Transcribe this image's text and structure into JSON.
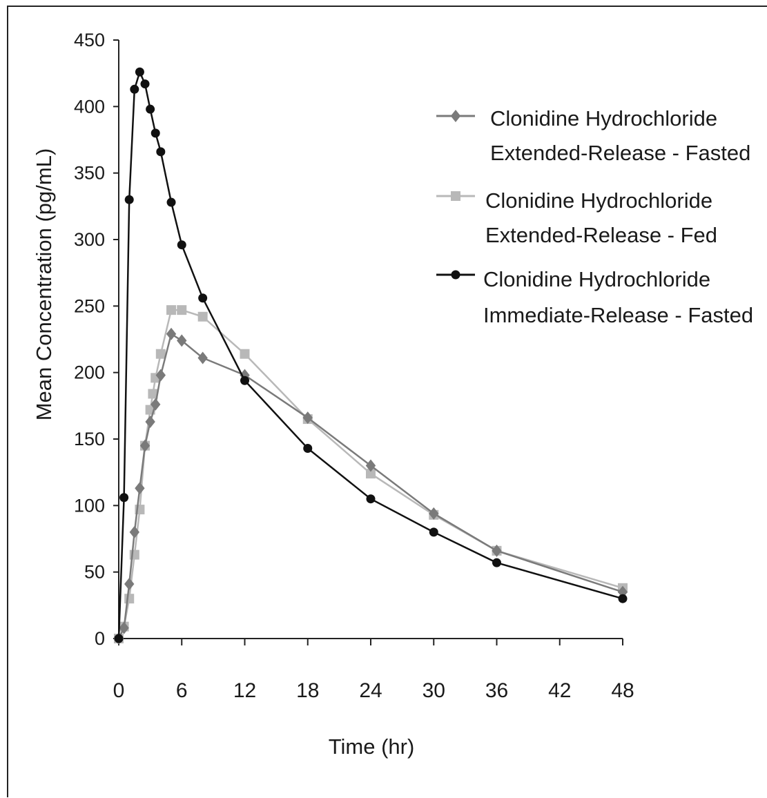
{
  "chart_data": {
    "type": "line",
    "title": "",
    "xlabel": "Time (hr)",
    "ylabel": "Mean Concentration (pg/mL)",
    "xlim": [
      0,
      48
    ],
    "ylim": [
      0,
      450
    ],
    "xticks": [
      0,
      6,
      12,
      18,
      24,
      30,
      36,
      42,
      48
    ],
    "yticks": [
      0,
      50,
      100,
      150,
      200,
      250,
      300,
      350,
      400,
      450
    ],
    "grid": false,
    "legend_position": "top-right",
    "series": [
      {
        "name": "Clonidine Hydrochloride Extended-Release - Fasted",
        "legend_lines": [
          "Clonidine Hydrochloride",
          "Extended-Release - Fasted"
        ],
        "marker": "diamond",
        "color": "#7a7a7a",
        "x": [
          0,
          0.5,
          1,
          1.5,
          2,
          2.5,
          3,
          3.5,
          4,
          5,
          6,
          8,
          12,
          18,
          24,
          30,
          36,
          48
        ],
        "y": [
          0,
          8,
          41,
          80,
          113,
          145,
          163,
          176,
          198,
          229,
          224,
          211,
          198,
          166,
          130,
          94,
          66,
          35
        ]
      },
      {
        "name": "Clonidine Hydrochloride Extended-Release - Fed",
        "legend_lines": [
          "Clonidine Hydrochloride",
          "Extended-Release - Fed"
        ],
        "marker": "square",
        "color": "#b8b8b8",
        "x": [
          0,
          0.5,
          1,
          1.5,
          2,
          2.5,
          3,
          3.25,
          3.5,
          4,
          5,
          6,
          8,
          12,
          18,
          24,
          30,
          36,
          48
        ],
        "y": [
          0,
          9,
          30,
          63,
          97,
          145,
          172,
          184,
          196,
          214,
          247,
          247,
          242,
          214,
          165,
          124,
          93,
          66,
          38
        ]
      },
      {
        "name": "Clonidine Hydrochloride Immediate-Release - Fasted",
        "legend_lines": [
          "Clonidine Hydrochloride",
          "Immediate-Release - Fasted"
        ],
        "marker": "circle",
        "color": "#111111",
        "x": [
          0,
          0.5,
          1,
          1.5,
          2,
          2.5,
          3,
          3.5,
          4,
          5,
          6,
          8,
          12,
          18,
          24,
          30,
          36,
          48
        ],
        "y": [
          0,
          106,
          330,
          413,
          426,
          417,
          398,
          380,
          366,
          328,
          296,
          256,
          194,
          143,
          105,
          80,
          57,
          30
        ]
      }
    ]
  }
}
